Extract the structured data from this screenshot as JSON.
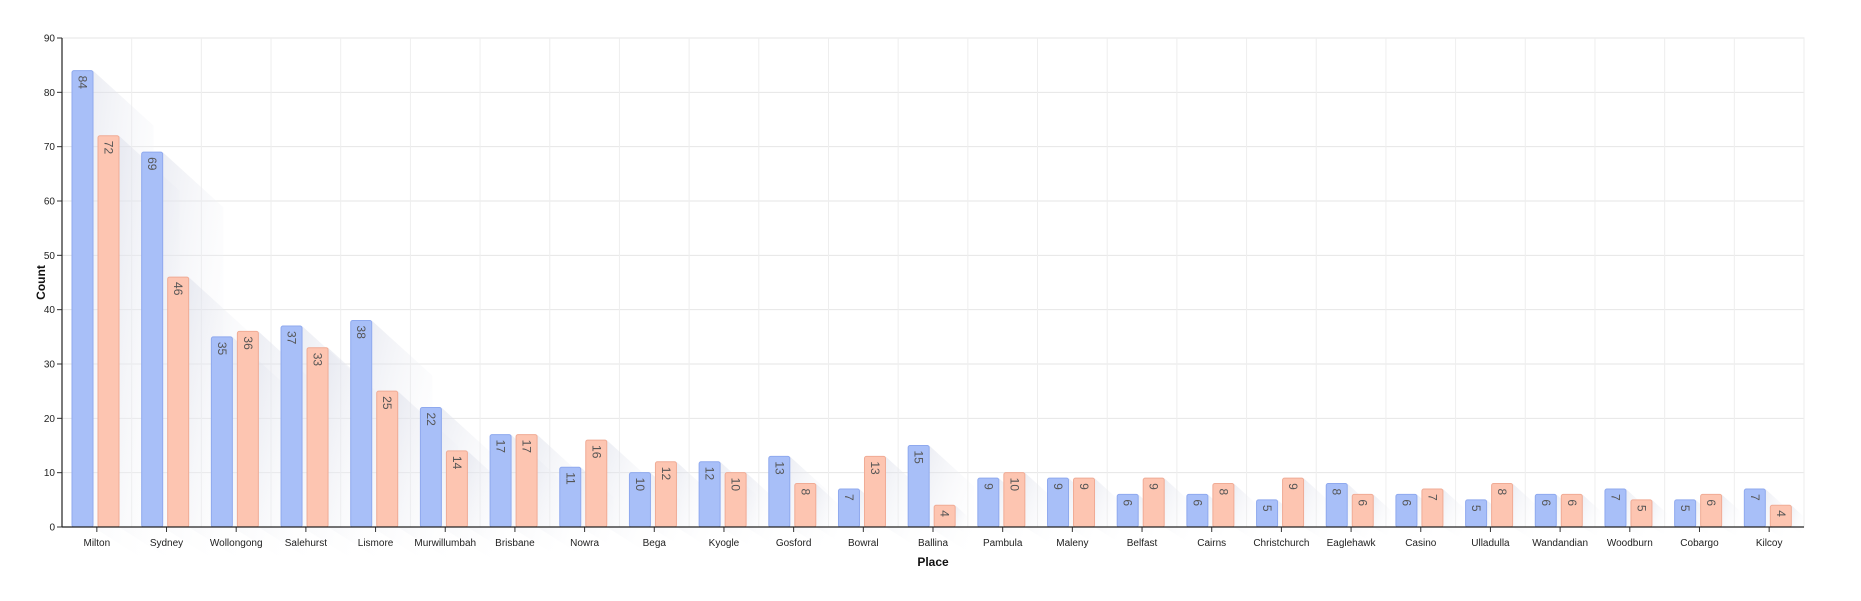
{
  "chart_data": {
    "type": "bar",
    "xlabel": "Place",
    "ylabel": "Count",
    "ylim": [
      0,
      90
    ],
    "yticks": [
      0,
      10,
      20,
      30,
      40,
      50,
      60,
      70,
      80,
      90
    ],
    "grid": true,
    "legend": "none",
    "categories": [
      "Milton",
      "Sydney",
      "Wollongong",
      "Salehurst",
      "Lismore",
      "Murwillumbah",
      "Brisbane",
      "Nowra",
      "Bega",
      "Kyogle",
      "Gosford",
      "Bowral",
      "Ballina",
      "Pambula",
      "Maleny",
      "Belfast",
      "Cairns",
      "Christchurch",
      "Eaglehawk",
      "Casino",
      "Ulladulla",
      "Wandandian",
      "Woodburn",
      "Cobargo",
      "Kilcoy"
    ],
    "series": [
      {
        "values": [
          84,
          69,
          35,
          37,
          38,
          22,
          17,
          11,
          10,
          12,
          13,
          7,
          15,
          9,
          9,
          6,
          6,
          5,
          8,
          6,
          5,
          6,
          7,
          5,
          7
        ],
        "color": "#a8bff8",
        "stroke": "#8fa9ee"
      },
      {
        "values": [
          72,
          46,
          36,
          33,
          25,
          14,
          17,
          16,
          12,
          10,
          8,
          13,
          4,
          10,
          9,
          9,
          8,
          9,
          6,
          7,
          8,
          6,
          5,
          6,
          4
        ],
        "color": "#fdc5b1",
        "stroke": "#f0ab95"
      }
    ]
  }
}
